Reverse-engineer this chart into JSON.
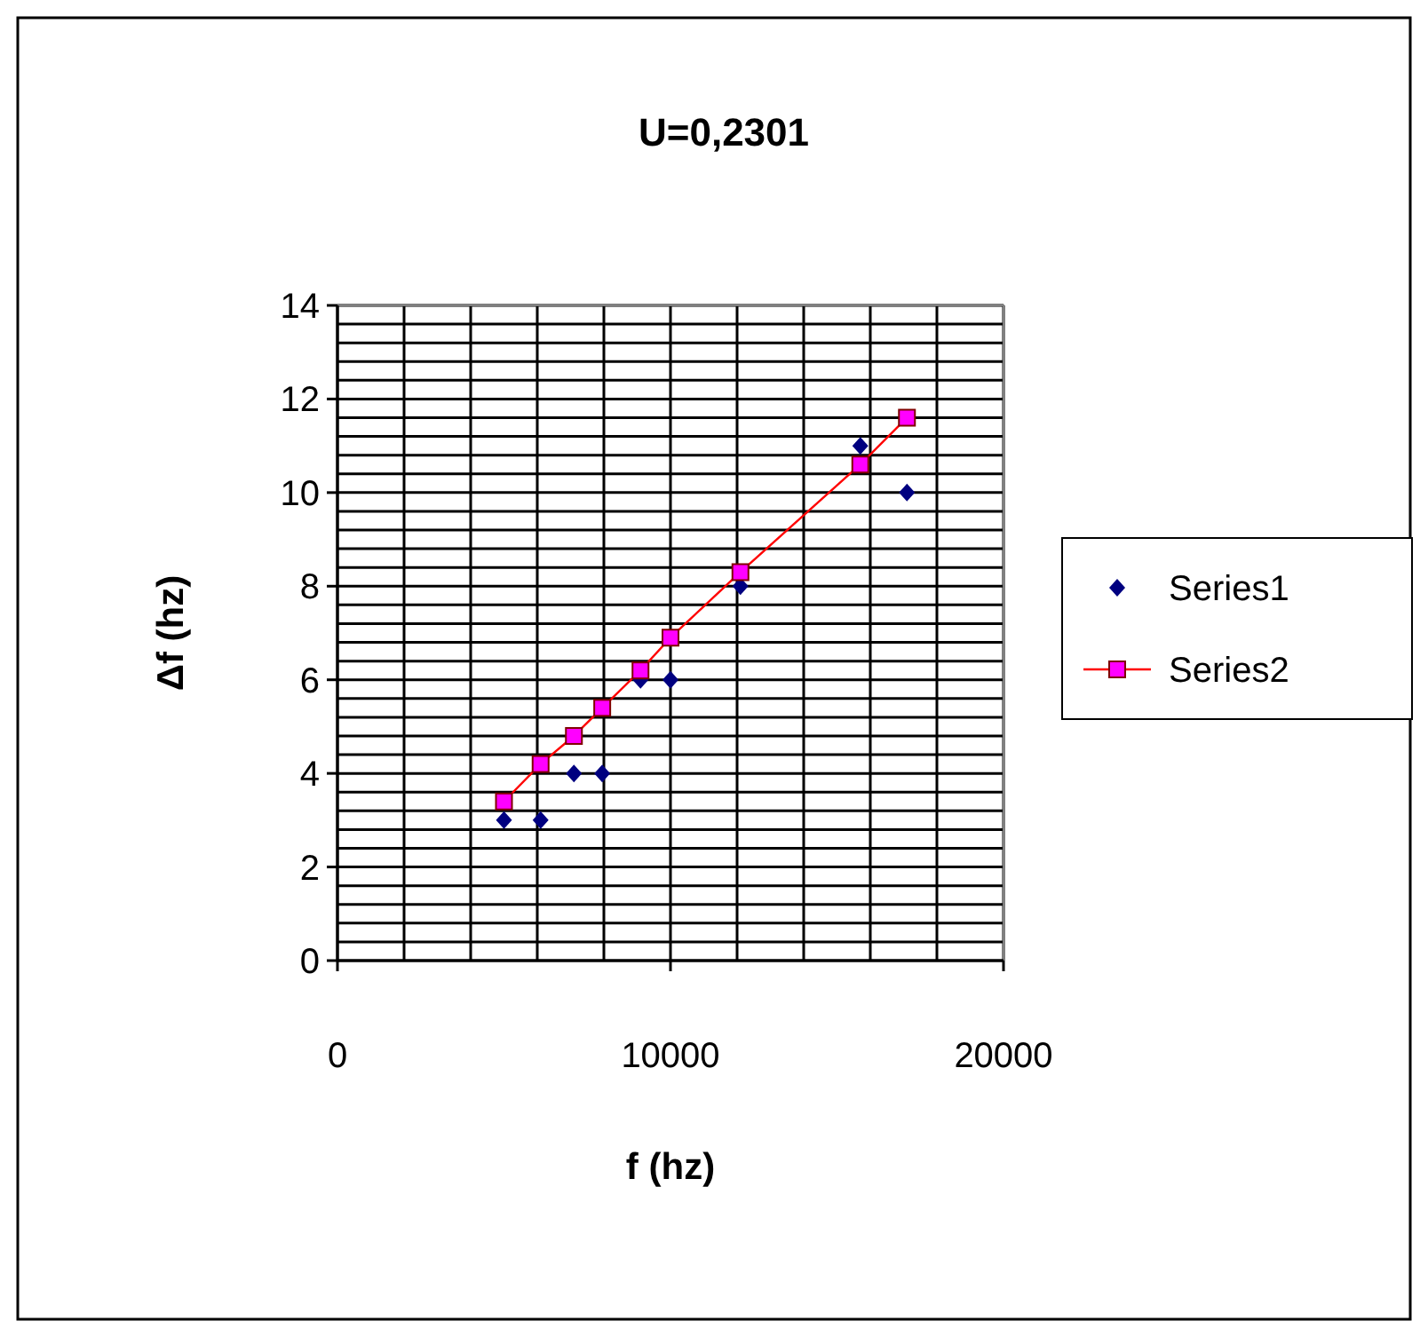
{
  "chart_data": {
    "type": "scatter",
    "title": "U=0,2301",
    "xlabel": "f (hz)",
    "ylabel": "Δf (hz)",
    "xlim": [
      0,
      20000
    ],
    "ylim": [
      0,
      14
    ],
    "xticks": [
      0,
      {
        "value": 2000,
        "label": null
      },
      {
        "value": 4000,
        "label": null
      },
      {
        "value": 6000,
        "label": null
      },
      {
        "value": 8000,
        "label": null
      },
      10000,
      {
        "value": 12000,
        "label": null
      },
      {
        "value": 14000,
        "label": null
      },
      {
        "value": 16000,
        "label": null
      },
      {
        "value": 18000,
        "label": null
      },
      20000
    ],
    "yticks": [
      0,
      {
        "value": 0.4,
        "label": null
      },
      {
        "value": 0.8,
        "label": null
      },
      {
        "value": 1.2,
        "label": null
      },
      {
        "value": 1.6,
        "label": null
      },
      2,
      {
        "value": 2.4,
        "label": null
      },
      {
        "value": 2.8,
        "label": null
      },
      {
        "value": 3.2,
        "label": null
      },
      {
        "value": 3.6,
        "label": null
      },
      4,
      {
        "value": 4.4,
        "label": null
      },
      {
        "value": 4.8,
        "label": null
      },
      {
        "value": 5.2,
        "label": null
      },
      {
        "value": 5.6,
        "label": null
      },
      6,
      {
        "value": 6.4,
        "label": null
      },
      {
        "value": 6.8,
        "label": null
      },
      {
        "value": 7.2,
        "label": null
      },
      {
        "value": 7.6,
        "label": null
      },
      8,
      {
        "value": 8.4,
        "label": null
      },
      {
        "value": 8.8,
        "label": null
      },
      {
        "value": 9.2,
        "label": null
      },
      {
        "value": 9.6,
        "label": null
      },
      10,
      {
        "value": 10.4,
        "label": null
      },
      {
        "value": 10.8,
        "label": null
      },
      {
        "value": 11.2,
        "label": null
      },
      {
        "value": 11.6,
        "label": null
      },
      12,
      {
        "value": 12.4,
        "label": null
      },
      {
        "value": 12.8,
        "label": null
      },
      {
        "value": 13.2,
        "label": null
      },
      {
        "value": 13.6,
        "label": null
      },
      14
    ],
    "grid": true,
    "legend": "right",
    "x": [
      5000,
      6100,
      7100,
      7950,
      9100,
      10000,
      12100,
      15700,
      17100
    ],
    "series": [
      {
        "name": "Series1",
        "type": "scatter",
        "color": "#000080",
        "marker": "diamond",
        "values": [
          3,
          3,
          4,
          4,
          6,
          6,
          8,
          11,
          10
        ]
      },
      {
        "name": "Series2",
        "type": "line",
        "color": "#ff0000",
        "marker": "square",
        "line_style": "solid",
        "values": [
          3.4,
          4.2,
          4.8,
          5.4,
          6.2,
          6.9,
          8.3,
          10.6,
          11.6
        ]
      }
    ]
  }
}
